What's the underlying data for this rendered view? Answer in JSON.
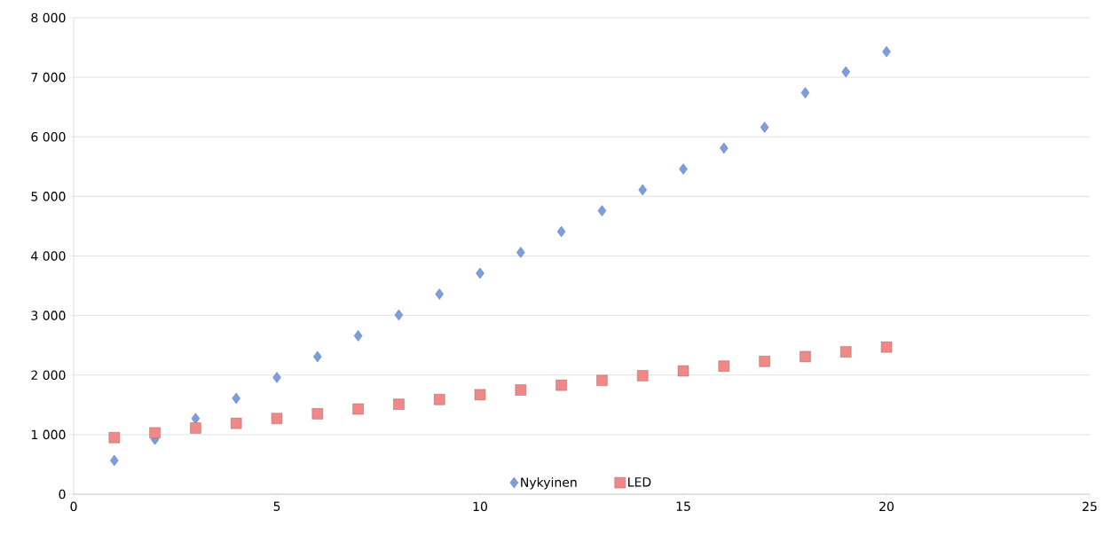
{
  "chart_data": {
    "type": "scatter",
    "x": [
      1,
      2,
      3,
      4,
      5,
      6,
      7,
      8,
      9,
      10,
      11,
      12,
      13,
      14,
      15,
      16,
      17,
      18,
      19,
      20
    ],
    "series": [
      {
        "name": "Nykyinen",
        "color": "#7b9ee0",
        "marker": "diamond",
        "values": [
          566,
          920,
          1270,
          1610,
          1960,
          2310,
          2660,
          3010,
          3360,
          3710,
          4060,
          4410,
          4760,
          5110,
          5460,
          5810,
          6160,
          6740,
          7090,
          7430
        ]
      },
      {
        "name": "LED",
        "color": "#f08888",
        "marker": "square",
        "values": [
          950,
          1030,
          1110,
          1190,
          1270,
          1350,
          1430,
          1510,
          1590,
          1670,
          1750,
          1830,
          1910,
          1990,
          2070,
          2150,
          2230,
          2310,
          2390,
          2470
        ]
      }
    ],
    "xlim": [
      0,
      25
    ],
    "xticks": [
      0,
      5,
      10,
      15,
      20,
      25
    ],
    "ylim": [
      0,
      8000
    ],
    "yticks": [
      0,
      {
        "value": 1000,
        "label": "1 000"
      },
      {
        "value": 2000,
        "label": "2 000"
      },
      {
        "value": 3000,
        "label": "3 000"
      },
      {
        "value": 4000,
        "label": "4 000"
      },
      {
        "value": 5000,
        "label": "5 000"
      },
      {
        "value": 6000,
        "label": "6 000"
      },
      {
        "value": 7000,
        "label": "7 000"
      },
      {
        "value": 8000,
        "label": "8 000"
      }
    ],
    "grid": "y",
    "legend": "bottom"
  }
}
